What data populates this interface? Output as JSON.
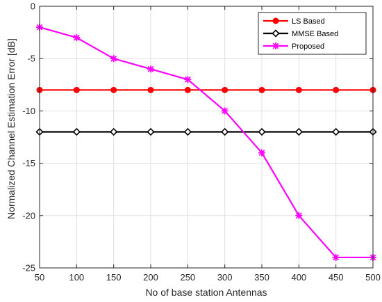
{
  "chart_data": {
    "type": "line",
    "title": "",
    "xlabel": "No of base station Antennas",
    "ylabel": "Normalized Channel Estimation Error [dB]",
    "xlim": [
      50,
      500
    ],
    "ylim": [
      -25,
      0
    ],
    "xticks": [
      50,
      100,
      150,
      200,
      250,
      300,
      350,
      400,
      450,
      500
    ],
    "yticks": [
      0,
      -5,
      -10,
      -15,
      -20,
      -25
    ],
    "grid": true,
    "legend_position": "top-right",
    "x": [
      50,
      100,
      150,
      200,
      250,
      300,
      350,
      400,
      450,
      500
    ],
    "series": [
      {
        "name": "LS Based",
        "color": "#ff0000",
        "marker": "filled-circle",
        "values": [
          -8,
          -8,
          -8,
          -8,
          -8,
          -8,
          -8,
          -8,
          -8,
          -8
        ]
      },
      {
        "name": "MMSE Based",
        "color": "#000000",
        "marker": "open-diamond",
        "values": [
          -12,
          -12,
          -12,
          -12,
          -12,
          -12,
          -12,
          -12,
          -12,
          -12
        ]
      },
      {
        "name": "Proposed",
        "color": "#ff00ff",
        "marker": "star",
        "values": [
          -2,
          -3,
          -5,
          -6,
          -7,
          -10,
          -14,
          -20,
          -24,
          -24
        ]
      }
    ]
  }
}
